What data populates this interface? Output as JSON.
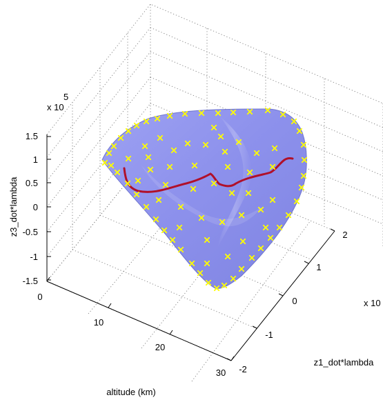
{
  "chart_data": {
    "type": "surface3d",
    "axes": {
      "x": {
        "label": "altitude (km)",
        "ticks": [
          "0",
          "10",
          "20",
          "30"
        ],
        "range": [
          0,
          30
        ]
      },
      "y": {
        "label": "z1_dot*lambda",
        "ticks": [
          "-2",
          "-1",
          "0",
          "1",
          "2"
        ],
        "range": [
          -2,
          2
        ],
        "multiplier": "x 10"
      },
      "z": {
        "label": "z3_dot*lambda",
        "ticks": [
          "-1.5",
          "-1",
          "-0.5",
          "0",
          "0.5",
          "1",
          "1.5"
        ],
        "range": [
          -1.5,
          1.5
        ],
        "multiplier": "x 10",
        "exponent": "5"
      }
    },
    "grid": true,
    "surface_color": "#8a8ff0",
    "trajectory_color": "#b0102a",
    "marker_color": "#ffff00",
    "marker": "x"
  }
}
